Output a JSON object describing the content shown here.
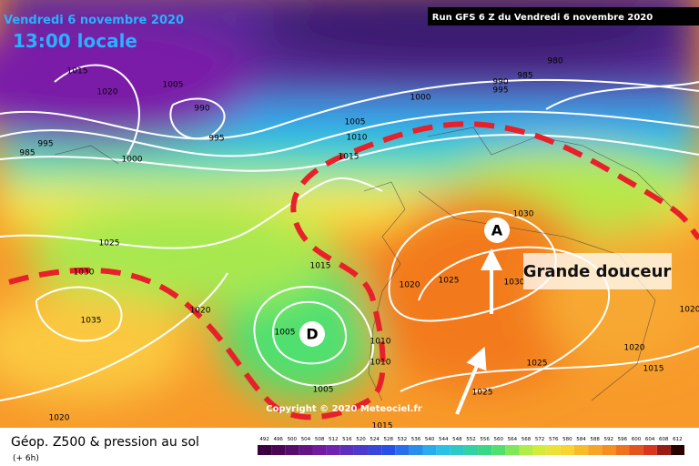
{
  "header": {
    "date": "Vendredi 6 novembre 2020",
    "time": "13:00 locale",
    "run": "Run GFS 6 Z du Vendredi 6 novembre 2020"
  },
  "annotations": {
    "high": "A",
    "low": "D",
    "note": "Grande douceur",
    "copyright": "Copyright © 2020 Meteociel.fr"
  },
  "isobar_labels": [
    1015,
    1020,
    1005,
    990,
    995,
    1000,
    995,
    985,
    1005,
    1010,
    1015,
    1000,
    985,
    990,
    995,
    980,
    1025,
    1030,
    1035,
    1020,
    1015,
    1005,
    1020,
    1025,
    1030,
    1030,
    1025,
    1020,
    1015,
    1025,
    1020,
    1005,
    1010,
    1010,
    1015,
    1020
  ],
  "footer": {
    "title": "Géop. Z500 & pression au sol",
    "subtitle": "(+ 6h)",
    "scale": [
      492,
      496,
      500,
      504,
      508,
      512,
      516,
      520,
      524,
      528,
      532,
      536,
      540,
      544,
      548,
      552,
      556,
      560,
      564,
      568,
      572,
      576,
      580,
      584,
      588,
      592,
      596,
      600,
      604,
      608,
      612
    ]
  }
}
